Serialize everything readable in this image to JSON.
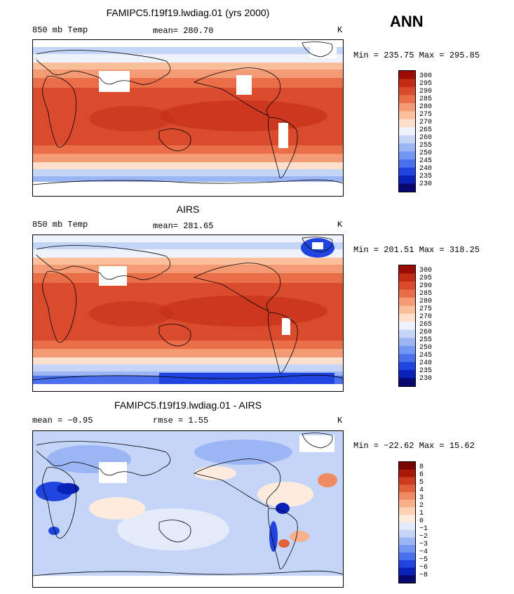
{
  "season": "ANN",
  "colors": {
    "abs_scale": [
      "#08086e",
      "#0a21b8",
      "#1f44e0",
      "#4a70ee",
      "#7396f3",
      "#9cb6f5",
      "#c5d5f7",
      "#eef2fb",
      "#fde0cc",
      "#fbbf9c",
      "#f49a74",
      "#ea6e48",
      "#d94b2c",
      "#c22b15",
      "#9d0b05"
    ],
    "diff_scale": [
      "#08086e",
      "#0a21b8",
      "#1f44e0",
      "#4a70ee",
      "#7396f3",
      "#9cb6f5",
      "#c5d5f7",
      "#e3ebfa",
      "#fdebde",
      "#fcd1b4",
      "#f8b08a",
      "#f08a63",
      "#e2603c",
      "#cc3a1f",
      "#a91708",
      "#7a0303"
    ]
  },
  "panels": [
    {
      "title": "FAMIPC5.f19f19.lwdiag.01 (yrs 2000)",
      "left_label": "850 mb Temp",
      "mid_label": "mean= 280.70",
      "units": "K",
      "minmax": "Min = 235.75 Max = 295.85",
      "ticks": [
        "300",
        "295",
        "290",
        "285",
        "280",
        "275",
        "270",
        "265",
        "260",
        "255",
        "250",
        "245",
        "240",
        "235",
        "230"
      ]
    },
    {
      "title": "AIRS",
      "left_label": "850 mb Temp",
      "mid_label": "mean= 281.65",
      "units": "K",
      "minmax": "Min = 201.51 Max = 318.25",
      "ticks": [
        "300",
        "295",
        "290",
        "285",
        "280",
        "275",
        "270",
        "265",
        "260",
        "255",
        "250",
        "245",
        "240",
        "235",
        "230"
      ]
    },
    {
      "title": "FAMIPC5.f19f19.lwdiag.01 - AIRS",
      "left_label": "mean =  −0.95",
      "mid_label": "rmse =   1.55",
      "units": "K",
      "minmax": "Min = −22.62 Max =  15.62",
      "ticks": [
        "8",
        "6",
        "5",
        "4",
        "3",
        "2",
        "1",
        "0",
        "−1",
        "−2",
        "−3",
        "−4",
        "−5",
        "−6",
        "−8"
      ]
    }
  ]
}
